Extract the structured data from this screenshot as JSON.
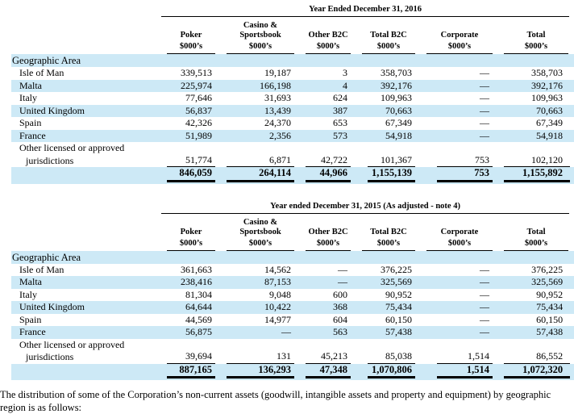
{
  "colors": {
    "row_highlight": "#cde9f6",
    "text": "#000000",
    "rule": "#000000"
  },
  "tables": [
    {
      "title": "Year Ended December 31, 2016",
      "section_label": "Geographic Area",
      "columns": [
        {
          "lines": [
            "Poker"
          ],
          "unit": "$000’s"
        },
        {
          "lines": [
            "Casino &",
            "Sportsbook"
          ],
          "unit": "$000’s"
        },
        {
          "lines": [
            "Other B2C"
          ],
          "unit": "$000’s"
        },
        {
          "lines": [
            "Total B2C"
          ],
          "unit": "$000’s"
        },
        {
          "lines": [
            "Corporate"
          ],
          "unit": "$000’s"
        },
        {
          "lines": [
            "Total"
          ],
          "unit": "$000’s"
        }
      ],
      "rows": [
        {
          "label_lines": [
            "Isle of Man"
          ],
          "values": [
            "339,513",
            "19,187",
            "3",
            "358,703",
            "—",
            "358,703"
          ]
        },
        {
          "label_lines": [
            "Malta"
          ],
          "values": [
            "225,974",
            "166,198",
            "4",
            "392,176",
            "—",
            "392,176"
          ]
        },
        {
          "label_lines": [
            "Italy"
          ],
          "values": [
            "77,646",
            "31,693",
            "624",
            "109,963",
            "—",
            "109,963"
          ]
        },
        {
          "label_lines": [
            "United Kingdom"
          ],
          "values": [
            "56,837",
            "13,439",
            "387",
            "70,663",
            "—",
            "70,663"
          ]
        },
        {
          "label_lines": [
            "Spain"
          ],
          "values": [
            "42,326",
            "24,370",
            "653",
            "67,349",
            "—",
            "67,349"
          ]
        },
        {
          "label_lines": [
            "France"
          ],
          "values": [
            "51,989",
            "2,356",
            "573",
            "54,918",
            "—",
            "54,918"
          ]
        },
        {
          "label_lines": [
            "Other licensed or approved",
            "jurisdictions"
          ],
          "values": [
            "51,774",
            "6,871",
            "42,722",
            "101,367",
            "753",
            "102,120"
          ]
        }
      ],
      "total_values": [
        "846,059",
        "264,114",
        "44,966",
        "1,155,139",
        "753",
        "1,155,892"
      ]
    },
    {
      "title": "Year ended December 31, 2015 (As adjusted - note 4)",
      "section_label": "Geographic Area",
      "columns": [
        {
          "lines": [
            "Poker"
          ],
          "unit": "$000’s"
        },
        {
          "lines": [
            "Casino &",
            "Sportsbook"
          ],
          "unit": "$000’s"
        },
        {
          "lines": [
            "Other B2C"
          ],
          "unit": "$000’s"
        },
        {
          "lines": [
            "Total B2C"
          ],
          "unit": "$000’s"
        },
        {
          "lines": [
            "Corporate"
          ],
          "unit": "$000’s"
        },
        {
          "lines": [
            "Total"
          ],
          "unit": "$000’s"
        }
      ],
      "rows": [
        {
          "label_lines": [
            "Isle of Man"
          ],
          "values": [
            "361,663",
            "14,562",
            "—",
            "376,225",
            "—",
            "376,225"
          ]
        },
        {
          "label_lines": [
            "Malta"
          ],
          "values": [
            "238,416",
            "87,153",
            "—",
            "325,569",
            "—",
            "325,569"
          ]
        },
        {
          "label_lines": [
            "Italy"
          ],
          "values": [
            "81,304",
            "9,048",
            "600",
            "90,952",
            "—",
            "90,952"
          ]
        },
        {
          "label_lines": [
            "United Kingdom"
          ],
          "values": [
            "64,644",
            "10,422",
            "368",
            "75,434",
            "—",
            "75,434"
          ]
        },
        {
          "label_lines": [
            "Spain"
          ],
          "values": [
            "44,569",
            "14,977",
            "604",
            "60,150",
            "—",
            "60,150"
          ]
        },
        {
          "label_lines": [
            "France"
          ],
          "values": [
            "56,875",
            "—",
            "563",
            "57,438",
            "—",
            "57,438"
          ]
        },
        {
          "label_lines": [
            "Other licensed or approved",
            "jurisdictions"
          ],
          "values": [
            "39,694",
            "131",
            "45,213",
            "85,038",
            "1,514",
            "86,552"
          ]
        }
      ],
      "total_values": [
        "887,165",
        "136,293",
        "47,348",
        "1,070,806",
        "1,514",
        "1,072,320"
      ]
    }
  ],
  "footer": {
    "text": "The distribution of some of the Corporation’s non-current assets (goodwill, intangible assets and property and equipment) by geographic region is as follows:"
  }
}
